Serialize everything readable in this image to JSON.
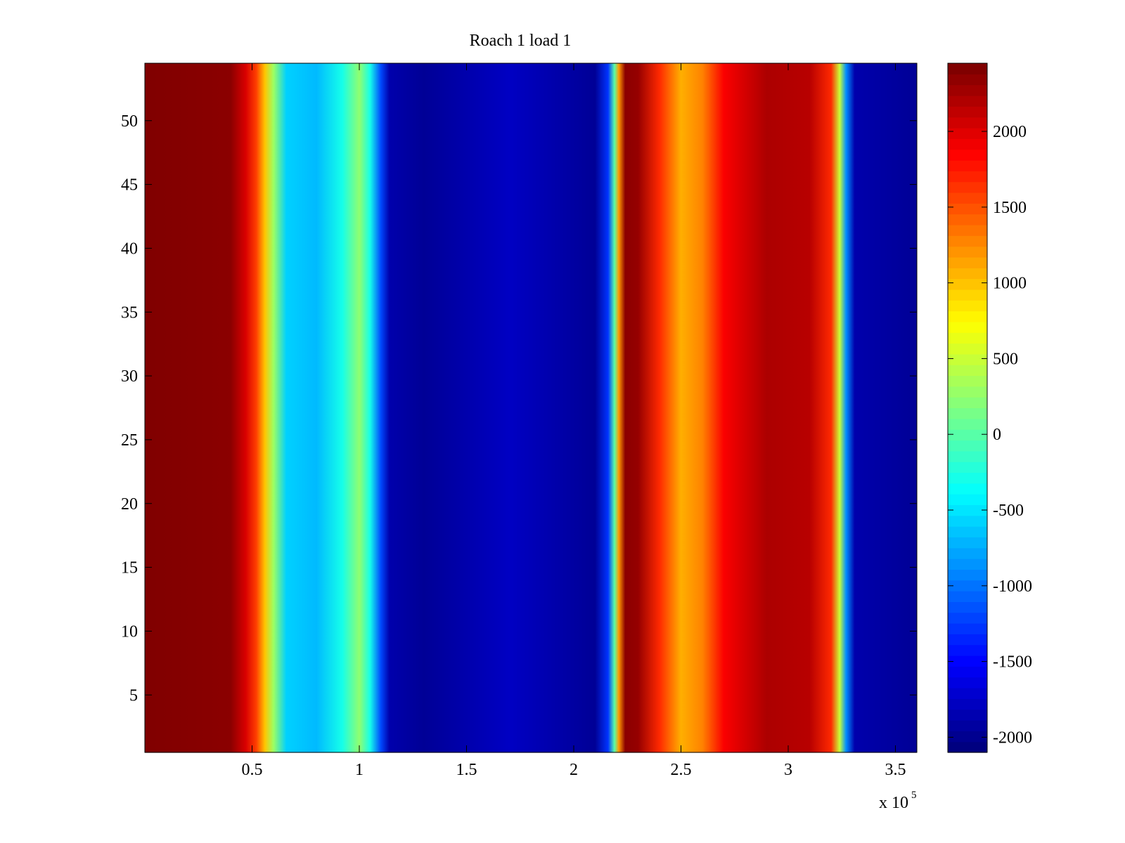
{
  "chart_data": {
    "type": "heatmap",
    "title": "Roach 1 load 1",
    "xlabel": "",
    "ylabel": "",
    "x_multiplier_base": "x 10",
    "x_multiplier_exp": "5",
    "xlim": [
      0,
      3.6
    ],
    "ylim": [
      0.5,
      54.5
    ],
    "x_ticks": [
      0.5,
      1,
      1.5,
      2,
      2.5,
      3,
      3.5
    ],
    "x_tick_labels": [
      "0.5",
      "1",
      "1.5",
      "2",
      "2.5",
      "3",
      "3.5"
    ],
    "y_ticks": [
      5,
      10,
      15,
      20,
      25,
      30,
      35,
      40,
      45,
      50
    ],
    "y_tick_labels": [
      "5",
      "10",
      "15",
      "20",
      "25",
      "30",
      "35",
      "40",
      "45",
      "50"
    ],
    "rows": 54,
    "colormap": "jet",
    "clim": [
      -2100,
      2450
    ],
    "colorbar_ticks": [
      2000,
      1500,
      1000,
      500,
      0,
      -500,
      -1000,
      -1500,
      -2000
    ],
    "colorbar_tick_labels": [
      "2000",
      "1500",
      "1000",
      "500",
      "0",
      "-500",
      "-1000",
      "-1500",
      "-2000"
    ],
    "profile": [
      {
        "x": 0.0,
        "value": 2450
      },
      {
        "x": 0.4,
        "value": 2400
      },
      {
        "x": 0.47,
        "value": 2050
      },
      {
        "x": 0.52,
        "value": 1600
      },
      {
        "x": 0.56,
        "value": 1000
      },
      {
        "x": 0.6,
        "value": 300
      },
      {
        "x": 0.66,
        "value": -600
      },
      {
        "x": 0.8,
        "value": -700
      },
      {
        "x": 0.92,
        "value": -300
      },
      {
        "x": 1.0,
        "value": 250
      },
      {
        "x": 1.05,
        "value": -300
      },
      {
        "x": 1.1,
        "value": -1200
      },
      {
        "x": 1.14,
        "value": -1900
      },
      {
        "x": 1.3,
        "value": -2000
      },
      {
        "x": 1.7,
        "value": -1800
      },
      {
        "x": 2.1,
        "value": -2000
      },
      {
        "x": 2.16,
        "value": -1300
      },
      {
        "x": 2.19,
        "value": 0
      },
      {
        "x": 2.21,
        "value": 1200
      },
      {
        "x": 2.24,
        "value": 2400
      },
      {
        "x": 2.3,
        "value": 2350
      },
      {
        "x": 2.4,
        "value": 1700
      },
      {
        "x": 2.5,
        "value": 1100
      },
      {
        "x": 2.6,
        "value": 1300
      },
      {
        "x": 2.7,
        "value": 1900
      },
      {
        "x": 2.9,
        "value": 2250
      },
      {
        "x": 3.1,
        "value": 2200
      },
      {
        "x": 3.2,
        "value": 1700
      },
      {
        "x": 3.24,
        "value": 500
      },
      {
        "x": 3.27,
        "value": -900
      },
      {
        "x": 3.31,
        "value": -1900
      },
      {
        "x": 3.6,
        "value": -2000
      }
    ]
  }
}
